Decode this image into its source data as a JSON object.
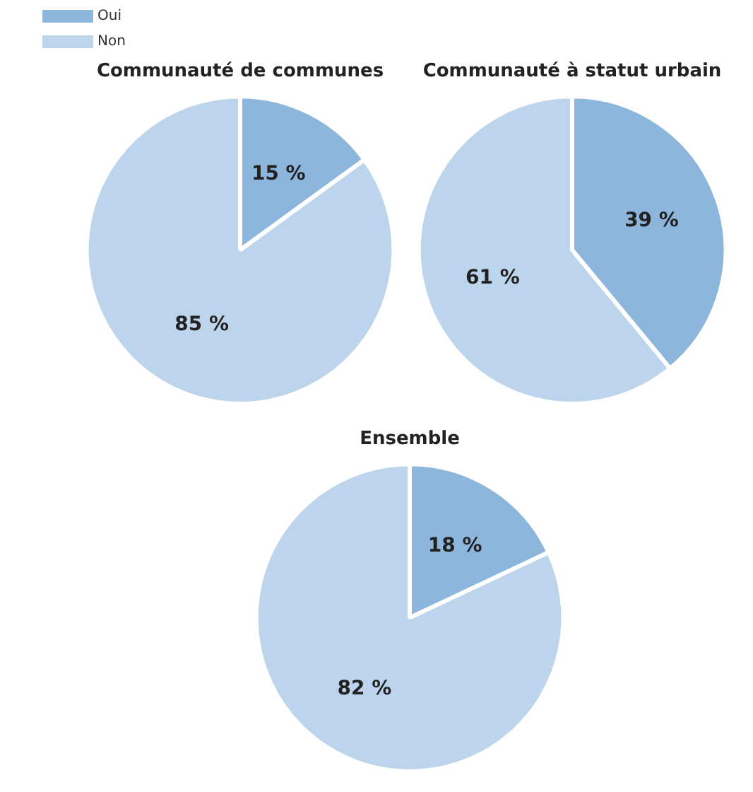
{
  "chart_data": [
    {
      "type": "pie",
      "title": "Communauté de communes",
      "categories": [
        "Oui",
        "Non"
      ],
      "values": [
        15,
        85
      ],
      "colors": [
        "#8db6dc",
        "#bdd5ec"
      ],
      "value_labels": [
        "15 %",
        "85 %"
      ],
      "legend": "top left"
    },
    {
      "type": "pie",
      "title": "Communauté à statut urbain",
      "categories": [
        null,
        null
      ],
      "values": [
        39,
        61
      ],
      "colors": [
        "#8db6dc",
        "#bdd5ec"
      ],
      "value_labels": [
        "39 %",
        "61 %"
      ]
    },
    {
      "type": "pie",
      "title": "Ensemble",
      "categories": [
        null,
        null
      ],
      "values": [
        18,
        82
      ],
      "colors": [
        "#8db6dc",
        "#bdd5ec"
      ],
      "value_labels": [
        "18 %",
        "82 %"
      ]
    }
  ]
}
